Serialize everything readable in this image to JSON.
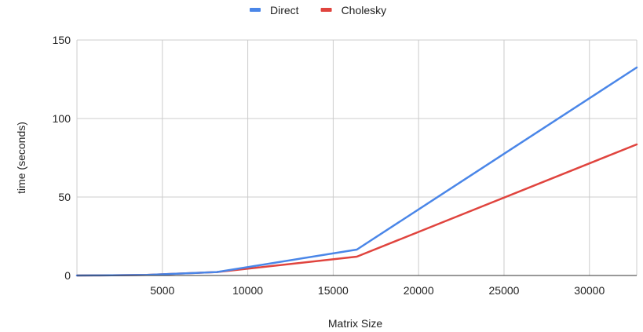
{
  "chart_data": {
    "type": "line",
    "x": [
      0,
      1024,
      2048,
      4096,
      8192,
      16384,
      32768
    ],
    "series": [
      {
        "name": "Direct",
        "color": "#4a86e8",
        "values": [
          0,
          0.05,
          0.1,
          0.4,
          2.2,
          16.5,
          132.5
        ]
      },
      {
        "name": "Cholesky",
        "color": "#e0443e",
        "values": [
          0,
          0.05,
          0.1,
          0.4,
          2.2,
          12,
          83.5
        ]
      }
    ],
    "xlabel": "Matrix Size",
    "ylabel": "time (seconds)",
    "xlim": [
      0,
      32768
    ],
    "ylim": [
      0,
      150
    ],
    "xticks": [
      5000,
      10000,
      15000,
      20000,
      25000,
      30000
    ],
    "yticks": [
      0,
      50,
      100,
      150
    ],
    "grid": true,
    "legend_position": "top-center"
  }
}
